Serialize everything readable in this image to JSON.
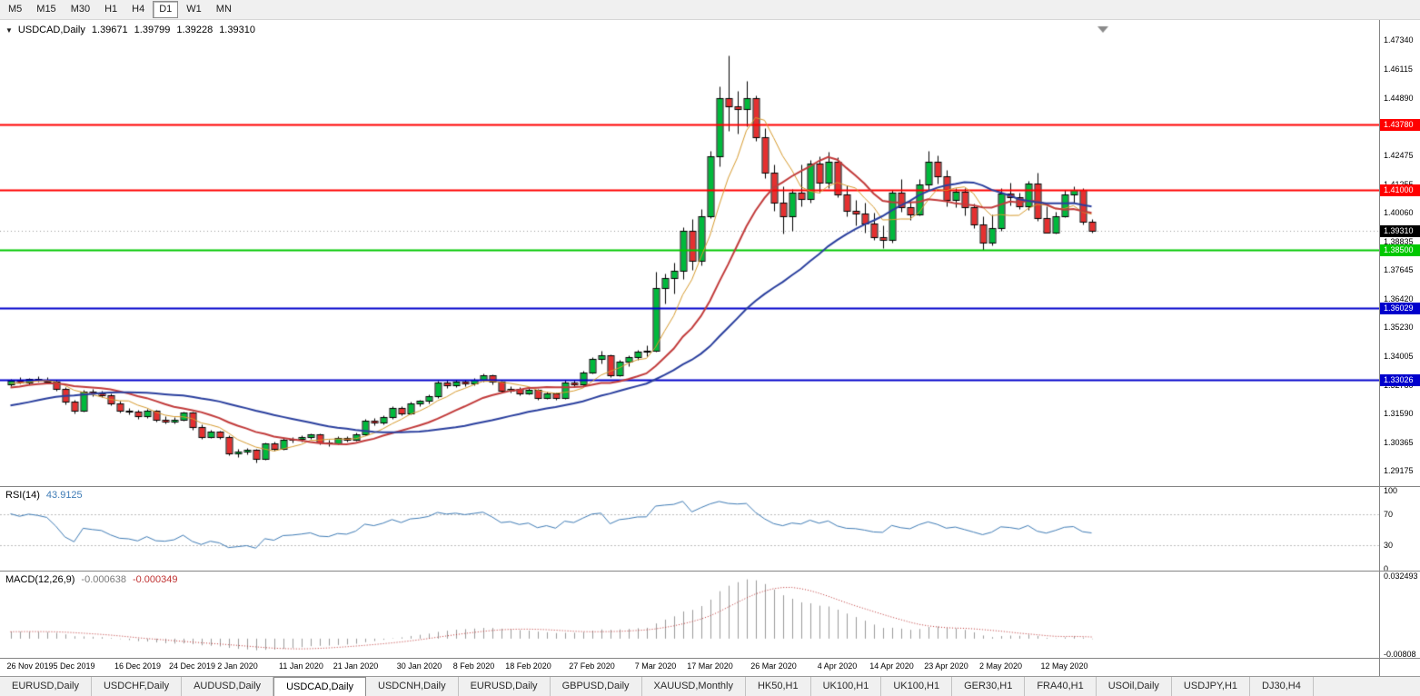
{
  "toolbar": {
    "timeframes": [
      "M5",
      "M15",
      "M30",
      "H1",
      "H4",
      "D1",
      "W1",
      "MN"
    ],
    "active": "D1"
  },
  "chart_title": {
    "symbol_period": "USDCAD,Daily",
    "open": "1.39671",
    "high": "1.39799",
    "low": "1.39228",
    "close": "1.39310"
  },
  "tabs": {
    "items": [
      "EURUSD,Daily",
      "USDCHF,Daily",
      "AUDUSD,Daily",
      "USDCAD,Daily",
      "USDCNH,Daily",
      "EURUSD,Daily",
      "GBPUSD,Daily",
      "XAUUSD,Monthly",
      "HK50,H1",
      "UK100,H1",
      "UK100,H1",
      "GER30,H1",
      "FRA40,H1",
      "USOil,Daily",
      "USDJPY,H1",
      "DJ30,H4"
    ],
    "active_index": 3
  },
  "colors": {
    "up": "#00b93c",
    "down": "#e53030",
    "outline": "#000000",
    "wick": "#000000",
    "current_dash": "#9a9a9a",
    "rsi_line": "#3f7cb6",
    "level_dash": "#bdbdbd",
    "macd_hist": "#9a9a9a",
    "macd_signal": "#c03333"
  },
  "chart_data": {
    "type": "candlestick",
    "symbol": "USDCAD",
    "timeframe": "Daily",
    "ylim": [
      1.28564,
      1.48181
    ],
    "price_ticks": [
      "1.47340",
      "1.46115",
      "1.44890",
      "1.42475",
      "1.41255",
      "1.40060",
      "1.38835",
      "1.37645",
      "1.36420",
      "1.35230",
      "1.34005",
      "1.32780",
      "1.31590",
      "1.30365",
      "1.29175"
    ],
    "horizontal_lines": [
      {
        "price": 1.4378,
        "label": "1.43780",
        "color": "#ff0000"
      },
      {
        "price": 1.41,
        "label": "1.41000",
        "color": "#ff0000"
      },
      {
        "price": 1.385,
        "label": "1.38500",
        "color": "#00c800"
      },
      {
        "price": 1.36029,
        "label": "1.36029",
        "color": "#0000cc"
      },
      {
        "price": 1.33026,
        "label": "1.33026",
        "color": "#0000cc"
      }
    ],
    "current_price": {
      "value": 1.3931,
      "label": "1.39310"
    },
    "moving_averages": [
      {
        "period": 6,
        "color": "#d79b2e",
        "width": 1
      },
      {
        "period": 14,
        "color": "#c23b3b",
        "width": 2
      },
      {
        "period": 30,
        "color": "#2a3f9e",
        "width": 2
      }
    ],
    "ma_warmup_closes": [
      1.3265,
      1.328,
      1.327,
      1.3255,
      1.324,
      1.323,
      1.3245,
      1.326,
      1.325,
      1.3235,
      1.322,
      1.3205,
      1.319,
      1.3175,
      1.316,
      1.317,
      1.3185,
      1.316,
      1.314,
      1.312,
      1.3105,
      1.309,
      1.3075,
      1.306,
      1.307,
      1.3085,
      1.3095,
      1.308,
      1.3065,
      1.3055,
      1.307,
      1.309,
      1.311,
      1.313,
      1.315,
      1.314,
      1.3125,
      1.3145,
      1.3165,
      1.3185,
      1.32,
      1.3215,
      1.323,
      1.322,
      1.324,
      1.3255,
      1.327,
      1.326,
      1.3275,
      1.3285,
      1.329,
      1.328,
      1.327,
      1.3285,
      1.3295
    ],
    "candles": [
      [
        1.3282,
        1.3305,
        1.3274,
        1.3298
      ],
      [
        1.3298,
        1.3312,
        1.3284,
        1.329
      ],
      [
        1.329,
        1.331,
        1.3282,
        1.3305
      ],
      [
        1.3305,
        1.3318,
        1.3293,
        1.3301
      ],
      [
        1.3301,
        1.3314,
        1.3287,
        1.3295
      ],
      [
        1.3295,
        1.33,
        1.3255,
        1.3264
      ],
      [
        1.3264,
        1.3272,
        1.3198,
        1.3207
      ],
      [
        1.3207,
        1.3218,
        1.3158,
        1.317
      ],
      [
        1.317,
        1.326,
        1.3165,
        1.3252
      ],
      [
        1.3252,
        1.3262,
        1.3233,
        1.3243
      ],
      [
        1.3243,
        1.3253,
        1.3228,
        1.3236
      ],
      [
        1.3236,
        1.3242,
        1.3195,
        1.3202
      ],
      [
        1.3202,
        1.3212,
        1.3164,
        1.3172
      ],
      [
        1.3172,
        1.3183,
        1.3156,
        1.3166
      ],
      [
        1.3166,
        1.3175,
        1.3138,
        1.3146
      ],
      [
        1.3146,
        1.3178,
        1.314,
        1.3171
      ],
      [
        1.3171,
        1.3176,
        1.3123,
        1.3131
      ],
      [
        1.3131,
        1.3146,
        1.3117,
        1.3126
      ],
      [
        1.3126,
        1.3144,
        1.3118,
        1.3134
      ],
      [
        1.3134,
        1.3168,
        1.3128,
        1.3161
      ],
      [
        1.3161,
        1.3166,
        1.3092,
        1.3101
      ],
      [
        1.3101,
        1.3112,
        1.3052,
        1.3061
      ],
      [
        1.3061,
        1.309,
        1.3054,
        1.3082
      ],
      [
        1.3082,
        1.3088,
        1.3052,
        1.3061
      ],
      [
        1.3061,
        1.3066,
        1.2984,
        1.2992
      ],
      [
        1.2992,
        1.3008,
        1.2974,
        1.2998
      ],
      [
        1.2998,
        1.3015,
        1.2986,
        1.3004
      ],
      [
        1.3004,
        1.3009,
        1.2951,
        1.2966
      ],
      [
        1.2966,
        1.3038,
        1.2962,
        1.3031
      ],
      [
        1.3031,
        1.304,
        1.3002,
        1.3011
      ],
      [
        1.3011,
        1.3056,
        1.3006,
        1.3048
      ],
      [
        1.3048,
        1.3059,
        1.3037,
        1.3052
      ],
      [
        1.3052,
        1.3068,
        1.3042,
        1.306
      ],
      [
        1.306,
        1.3076,
        1.305,
        1.307
      ],
      [
        1.307,
        1.3075,
        1.3029,
        1.3038
      ],
      [
        1.3038,
        1.3048,
        1.3022,
        1.3033
      ],
      [
        1.3033,
        1.3062,
        1.3028,
        1.3055
      ],
      [
        1.3055,
        1.3065,
        1.3041,
        1.3049
      ],
      [
        1.3049,
        1.3078,
        1.3044,
        1.3071
      ],
      [
        1.3071,
        1.3138,
        1.3066,
        1.313
      ],
      [
        1.313,
        1.3141,
        1.3109,
        1.3119
      ],
      [
        1.3119,
        1.315,
        1.3112,
        1.3142
      ],
      [
        1.3142,
        1.3189,
        1.3138,
        1.3181
      ],
      [
        1.3181,
        1.319,
        1.3151,
        1.316
      ],
      [
        1.316,
        1.3209,
        1.3155,
        1.3201
      ],
      [
        1.3201,
        1.3218,
        1.3189,
        1.3211
      ],
      [
        1.3211,
        1.324,
        1.3203,
        1.3231
      ],
      [
        1.3231,
        1.3297,
        1.3226,
        1.329
      ],
      [
        1.329,
        1.3299,
        1.3268,
        1.3279
      ],
      [
        1.3279,
        1.3301,
        1.3271,
        1.3293
      ],
      [
        1.3293,
        1.33,
        1.3274,
        1.3284
      ],
      [
        1.3284,
        1.3308,
        1.3278,
        1.3301
      ],
      [
        1.3301,
        1.3326,
        1.3295,
        1.3319
      ],
      [
        1.3319,
        1.3324,
        1.3283,
        1.3292
      ],
      [
        1.3292,
        1.3298,
        1.3246,
        1.3255
      ],
      [
        1.3255,
        1.3273,
        1.3247,
        1.3264
      ],
      [
        1.3264,
        1.327,
        1.3236,
        1.3245
      ],
      [
        1.3245,
        1.3266,
        1.3238,
        1.3258
      ],
      [
        1.3258,
        1.3264,
        1.3217,
        1.3226
      ],
      [
        1.3226,
        1.325,
        1.3219,
        1.3243
      ],
      [
        1.3243,
        1.3249,
        1.3216,
        1.3225
      ],
      [
        1.3225,
        1.3299,
        1.322,
        1.3291
      ],
      [
        1.3291,
        1.3302,
        1.3271,
        1.3281
      ],
      [
        1.3281,
        1.3339,
        1.3276,
        1.3331
      ],
      [
        1.3331,
        1.3397,
        1.3326,
        1.339
      ],
      [
        1.339,
        1.3423,
        1.3368,
        1.3405
      ],
      [
        1.3405,
        1.341,
        1.3311,
        1.3321
      ],
      [
        1.3321,
        1.3387,
        1.3315,
        1.3379
      ],
      [
        1.3379,
        1.3404,
        1.3359,
        1.3396
      ],
      [
        1.3396,
        1.3429,
        1.3385,
        1.3421
      ],
      [
        1.3421,
        1.3445,
        1.3402,
        1.3423
      ],
      [
        1.3423,
        1.3758,
        1.3418,
        1.3689
      ],
      [
        1.3689,
        1.3749,
        1.3623,
        1.3731
      ],
      [
        1.3731,
        1.3796,
        1.3665,
        1.3762
      ],
      [
        1.3762,
        1.3945,
        1.3728,
        1.3931
      ],
      [
        1.3931,
        1.3979,
        1.3763,
        1.3801
      ],
      [
        1.3801,
        1.4022,
        1.3782,
        1.3992
      ],
      [
        1.3992,
        1.4265,
        1.3983,
        1.4242
      ],
      [
        1.4242,
        1.4538,
        1.4201,
        1.449
      ],
      [
        1.449,
        1.4669,
        1.4349,
        1.4453
      ],
      [
        1.4453,
        1.452,
        1.4341,
        1.4442
      ],
      [
        1.4442,
        1.4562,
        1.4368,
        1.4488
      ],
      [
        1.4488,
        1.4502,
        1.4308,
        1.4323
      ],
      [
        1.4323,
        1.4361,
        1.4151,
        1.4176
      ],
      [
        1.4176,
        1.421,
        1.4013,
        1.4049
      ],
      [
        1.4049,
        1.4116,
        1.3919,
        1.399
      ],
      [
        1.399,
        1.4105,
        1.3928,
        1.4089
      ],
      [
        1.4089,
        1.4208,
        1.4031,
        1.4062
      ],
      [
        1.4062,
        1.4228,
        1.4048,
        1.4211
      ],
      [
        1.4211,
        1.4242,
        1.409,
        1.4131
      ],
      [
        1.4131,
        1.4263,
        1.4109,
        1.4221
      ],
      [
        1.4221,
        1.424,
        1.4071,
        1.4083
      ],
      [
        1.4083,
        1.4121,
        1.3991,
        1.4012
      ],
      [
        1.4012,
        1.4058,
        1.3953,
        1.4001
      ],
      [
        1.4001,
        1.4048,
        1.3923,
        1.3959
      ],
      [
        1.3959,
        1.4006,
        1.3892,
        1.3904
      ],
      [
        1.3904,
        1.3954,
        1.3855,
        1.3892
      ],
      [
        1.3892,
        1.4103,
        1.3879,
        1.4089
      ],
      [
        1.4089,
        1.4147,
        1.4009,
        1.4029
      ],
      [
        1.4029,
        1.4056,
        1.3976,
        1.4
      ],
      [
        1.4,
        1.4148,
        1.3993,
        1.4123
      ],
      [
        1.4123,
        1.4265,
        1.4102,
        1.4221
      ],
      [
        1.4221,
        1.4246,
        1.4128,
        1.416
      ],
      [
        1.416,
        1.4185,
        1.4034,
        1.406
      ],
      [
        1.406,
        1.4109,
        1.4028,
        1.4093
      ],
      [
        1.4093,
        1.411,
        1.3993,
        1.4028
      ],
      [
        1.4028,
        1.4043,
        1.3939,
        1.3957
      ],
      [
        1.3957,
        1.3992,
        1.385,
        1.3879
      ],
      [
        1.3879,
        1.3998,
        1.3868,
        1.394
      ],
      [
        1.394,
        1.411,
        1.3929,
        1.4088
      ],
      [
        1.4088,
        1.4133,
        1.4035,
        1.407
      ],
      [
        1.407,
        1.4091,
        1.4021,
        1.4032
      ],
      [
        1.4032,
        1.414,
        1.4018,
        1.4129
      ],
      [
        1.4129,
        1.4173,
        1.3972,
        1.3982
      ],
      [
        1.3982,
        1.4033,
        1.392,
        1.3923
      ],
      [
        1.3923,
        1.4009,
        1.3916,
        1.3992
      ],
      [
        1.3992,
        1.4102,
        1.3985,
        1.4082
      ],
      [
        1.4082,
        1.4118,
        1.4049,
        1.4102
      ],
      [
        1.4102,
        1.4108,
        1.3956,
        1.3967
      ],
      [
        1.39671,
        1.39799,
        1.39228,
        1.3931
      ]
    ],
    "date_labels": [
      {
        "label": "26 Nov 2019",
        "index": 0
      },
      {
        "label": "5 Dec 2019",
        "index": 7
      },
      {
        "label": "16 Dec 2019",
        "index": 14
      },
      {
        "label": "24 Dec 2019",
        "index": 20
      },
      {
        "label": "2 Jan 2020",
        "index": 25
      },
      {
        "label": "11 Jan 2020",
        "index": 32
      },
      {
        "label": "21 Jan 2020",
        "index": 38
      },
      {
        "label": "30 Jan 2020",
        "index": 45
      },
      {
        "label": "8 Feb 2020",
        "index": 51
      },
      {
        "label": "18 Feb 2020",
        "index": 57
      },
      {
        "label": "27 Feb 2020",
        "index": 64
      },
      {
        "label": "7 Mar 2020",
        "index": 71
      },
      {
        "label": "17 Mar 2020",
        "index": 77
      },
      {
        "label": "26 Mar 2020",
        "index": 84
      },
      {
        "label": "4 Apr 2020",
        "index": 91
      },
      {
        "label": "14 Apr 2020",
        "index": 97
      },
      {
        "label": "23 Apr 2020",
        "index": 103
      },
      {
        "label": "2 May 2020",
        "index": 109
      },
      {
        "label": "12 May 2020",
        "index": 116
      }
    ],
    "rsi": {
      "label": "RSI(14)",
      "period": 14,
      "current": "43.9125",
      "levels": [
        70,
        30
      ],
      "scale_labels": [
        {
          "text": "100",
          "value": 100
        },
        {
          "text": "70",
          "value": 70
        },
        {
          "text": "30",
          "value": 30
        },
        {
          "text": "0",
          "value": 0
        }
      ]
    },
    "macd": {
      "label": "MACD(12,26,9)",
      "fast": 12,
      "slow": 26,
      "signal_period": 9,
      "main": "-0.000638",
      "signal": "-0.000349",
      "scale_top": {
        "text": "0.032493",
        "value": 0.032493
      },
      "scale_bottom": {
        "text": "-0.00808",
        "value": -0.00808
      }
    }
  }
}
